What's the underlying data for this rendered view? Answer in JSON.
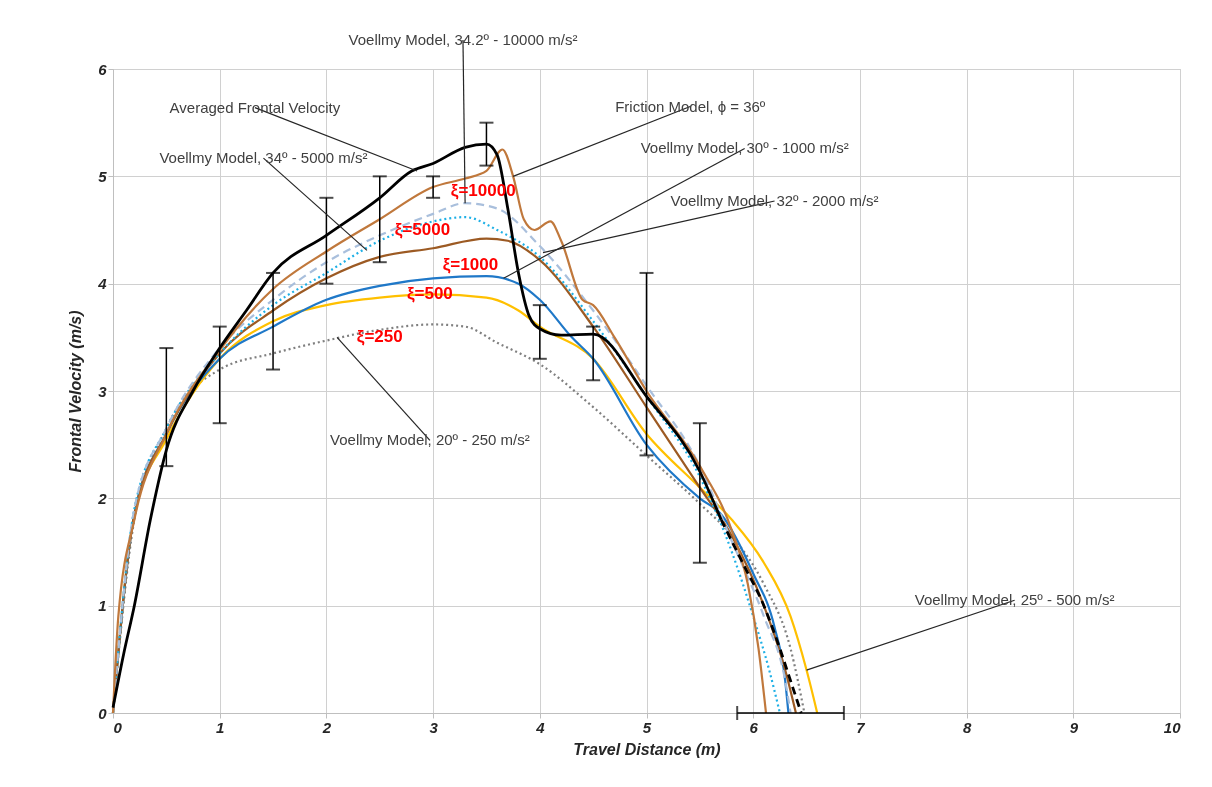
{
  "chart_data": {
    "type": "line",
    "xlabel": "Travel Distance (m)",
    "ylabel": "Frontal Velocity (m/s)",
    "xlim": [
      0,
      10
    ],
    "ylim": [
      0,
      6
    ],
    "xticks": [
      0,
      1,
      2,
      3,
      4,
      5,
      6,
      7,
      8,
      9,
      10
    ],
    "yticks": [
      0,
      1,
      2,
      3,
      4,
      5,
      6
    ],
    "grid": true,
    "series": [
      {
        "color": "#7f7f7f",
        "line_style": "dotted",
        "x": [
          0,
          0.2,
          0.5,
          1,
          1.5,
          2,
          2.5,
          3,
          3.3,
          3.6,
          4,
          4.5,
          5,
          5.5,
          5.8,
          6.1,
          6.35,
          6.48
        ],
        "values": [
          0,
          1.8,
          2.65,
          3.2,
          3.35,
          3.47,
          3.57,
          3.62,
          3.6,
          3.45,
          3.25,
          2.85,
          2.4,
          1.95,
          1.65,
          1.2,
          0.6,
          0
        ]
      },
      {
        "color": "#ffc000",
        "line_style": "solid",
        "x": [
          0,
          0.2,
          0.5,
          1,
          1.5,
          2,
          2.5,
          3,
          3.5,
          3.8,
          4,
          4.5,
          5,
          5.5,
          5.8,
          6.1,
          6.35,
          6.5,
          6.6
        ],
        "values": [
          0,
          1.85,
          2.55,
          3.3,
          3.65,
          3.8,
          3.87,
          3.9,
          3.87,
          3.75,
          3.6,
          3.3,
          2.6,
          2.1,
          1.8,
          1.4,
          0.9,
          0.4,
          0
        ]
      },
      {
        "color": "#1f78c8",
        "line_style": "solid",
        "x": [
          0,
          0.2,
          0.5,
          1,
          1.5,
          2,
          2.5,
          3,
          3.5,
          3.8,
          4,
          4.3,
          4.5,
          5,
          5.5,
          5.7,
          6,
          6.2,
          6.3,
          6.33
        ],
        "values": [
          0,
          1.85,
          2.6,
          3.3,
          3.6,
          3.85,
          3.98,
          4.05,
          4.07,
          4.0,
          3.85,
          3.5,
          3.3,
          2.5,
          2.0,
          1.85,
          1.3,
          0.8,
          0.3,
          0
        ]
      },
      {
        "color": "#9c5a23",
        "line_style": "solid",
        "x": [
          0,
          0.2,
          0.5,
          1,
          1.5,
          2,
          2.5,
          3,
          3.5,
          3.7,
          4,
          4.5,
          5,
          5.5,
          5.8,
          6.1,
          6.3,
          6.4
        ],
        "values": [
          0,
          1.85,
          2.6,
          3.35,
          3.75,
          4.05,
          4.25,
          4.33,
          4.42,
          4.4,
          4.22,
          3.6,
          2.85,
          2.1,
          1.65,
          1.0,
          0.4,
          0
        ]
      },
      {
        "color": "#1fb0e6",
        "line_style": "dotted",
        "x": [
          0,
          0.2,
          0.5,
          1,
          1.5,
          2,
          2.5,
          3,
          3.3,
          3.6,
          4,
          4.5,
          5,
          5.5,
          5.8,
          6.0,
          6.15,
          6.25
        ],
        "values": [
          0,
          1.9,
          2.65,
          3.35,
          3.8,
          4.1,
          4.4,
          4.58,
          4.62,
          4.5,
          4.25,
          3.65,
          2.95,
          2.2,
          1.5,
          0.9,
          0.4,
          0
        ]
      },
      {
        "color": "#a9bfdc",
        "line_style": "dashed",
        "x": [
          0,
          0.2,
          0.5,
          1,
          1.5,
          2,
          2.5,
          3,
          3.3,
          3.6,
          4,
          4.5,
          5,
          5.5,
          5.8,
          6.1,
          6.3,
          6.35
        ],
        "values": [
          0,
          1.9,
          2.65,
          3.4,
          3.85,
          4.2,
          4.45,
          4.65,
          4.75,
          4.7,
          4.35,
          3.75,
          3.05,
          2.3,
          1.6,
          0.9,
          0.3,
          0
        ]
      },
      {
        "color": "#c0783c",
        "line_style": "solid",
        "x": [
          0,
          0.05,
          0.2,
          0.5,
          1,
          1.5,
          2,
          2.5,
          3,
          3.3,
          3.5,
          3.65,
          3.75,
          3.85,
          3.95,
          4.1,
          4.2,
          4.4,
          4.5,
          4.7,
          5,
          5.5,
          5.8,
          5.95,
          6.05,
          6.12
        ],
        "values": [
          0,
          0.9,
          1.8,
          2.6,
          3.38,
          3.95,
          4.3,
          4.6,
          4.9,
          4.98,
          5.05,
          5.25,
          5.0,
          4.6,
          4.5,
          4.58,
          4.4,
          3.85,
          3.8,
          3.5,
          3.0,
          2.3,
          1.7,
          1.2,
          0.6,
          0
        ]
      },
      {
        "color": "#000000",
        "line_style": "solid",
        "x": [
          0,
          0.1,
          0.2,
          0.35,
          0.5,
          0.75,
          1,
          1.25,
          1.5,
          2,
          2.5,
          2.8,
          3,
          3.3,
          3.5,
          3.6,
          3.7,
          3.8,
          3.9,
          4,
          4.2,
          4.5,
          5,
          5.5,
          5.7
        ],
        "values": [
          0.05,
          0.55,
          1.0,
          1.8,
          2.45,
          3.0,
          3.4,
          3.75,
          4.1,
          4.45,
          4.8,
          5.05,
          5.12,
          5.27,
          5.3,
          5.2,
          4.7,
          4.1,
          3.7,
          3.58,
          3.52,
          3.53,
          2.95,
          2.25,
          1.8
        ],
        "errors": [
          null,
          null,
          null,
          null,
          [
            2.3,
            3.4
          ],
          null,
          [
            2.7,
            3.6
          ],
          null,
          [
            3.2,
            4.1
          ],
          [
            4.0,
            4.8
          ],
          [
            4.2,
            5.0
          ],
          null,
          [
            4.8,
            5.0
          ],
          null,
          [
            5.1,
            5.5
          ],
          null,
          null,
          null,
          null,
          [
            3.3,
            3.8
          ],
          null,
          [
            3.1,
            3.6
          ],
          [
            2.4,
            4.1
          ],
          [
            1.4,
            2.7
          ],
          null
        ]
      },
      {
        "color": "#000000",
        "line_style": "dashed",
        "x": [
          5.7,
          5.9,
          6.1,
          6.25,
          6.35,
          6.45
        ],
        "values": [
          1.8,
          1.4,
          1.0,
          0.6,
          0.3,
          0
        ],
        "xerrors": [
          null,
          null,
          null,
          null,
          null,
          [
            5.85,
            6.85
          ]
        ]
      }
    ],
    "annotations": [
      {
        "text": "Averaged Frontal Velocity",
        "x": 2.85,
        "y": 5.05
      },
      {
        "text": "Voellmy Model, 34.2º - 10000 m/s²",
        "x": 3.3,
        "y": 4.75
      },
      {
        "text": "Voellmy Model, 34º - 5000 m/s²",
        "x": 2.38,
        "y": 4.31
      },
      {
        "text": "Friction Model, ϕ = 36º",
        "x": 3.75,
        "y": 5.0
      },
      {
        "text": "Voellmy Model, 30º - 1000 m/s²",
        "x": 3.66,
        "y": 4.05
      },
      {
        "text": "Voellmy Model, 32º - 2000 m/s²",
        "x": 4.03,
        "y": 4.29
      },
      {
        "text": "Voellmy Model, 25º - 500 m/s²",
        "x": 6.5,
        "y": 0.4
      },
      {
        "text": "Voellmy Model, 20º - 250 m/s²",
        "x": 2.1,
        "y": 3.5
      },
      "ξ=10000",
      "ξ=5000",
      "ξ=1000",
      "ξ=500",
      "ξ=250"
    ]
  }
}
